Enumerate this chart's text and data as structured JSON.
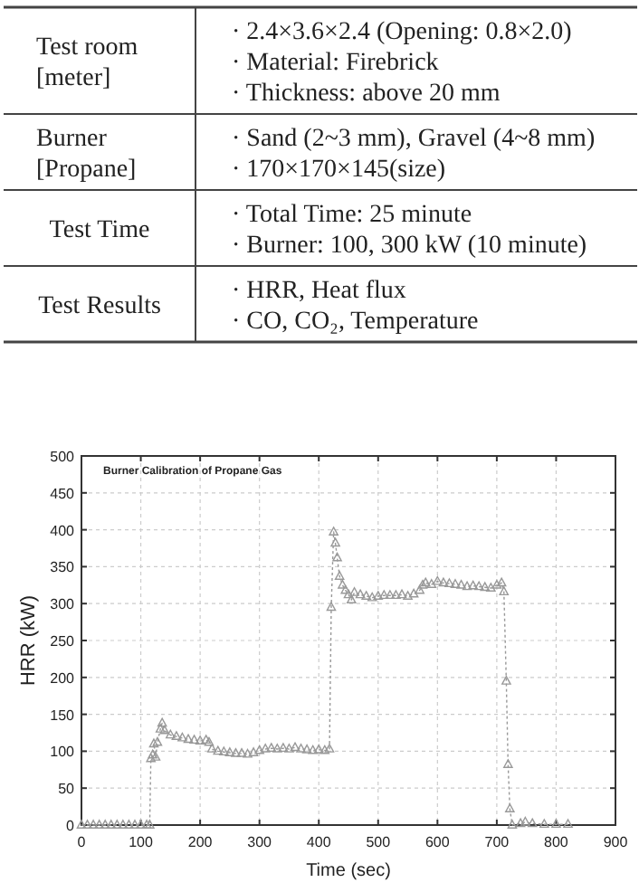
{
  "chart_data": [
    {
      "type": "other",
      "categories": [
        "Test room [meter]",
        "Burner [Propane]",
        "Test Time",
        "Test Results"
      ],
      "cell_labels": [
        [
          "· 2.4×3.6×2.4 (Opening: 0.8×2.0)",
          "· Material: Firebrick",
          "· Thickness: above 20 mm"
        ],
        [
          "· Sand (2~3 mm), Gravel (4~8 mm)",
          "· 170×170×145(size)"
        ],
        [
          "· Total Time: 25 minute",
          "· Burner: 100, 300 kW (10 minute)"
        ],
        [
          "· HRR, Heat flux",
          "· CO, CO₂, Temperature"
        ]
      ]
    },
    {
      "type": "line",
      "title": "Burner Calibration of Propane Gas",
      "xlabel": "Time (sec)",
      "ylabel": "HRR (kW)",
      "xlim": [
        0,
        900
      ],
      "xticks": [
        0,
        100,
        200,
        300,
        400,
        500,
        600,
        700,
        800,
        900
      ],
      "ylim": [
        0,
        500
      ],
      "yticks": [
        0,
        50,
        100,
        150,
        200,
        250,
        300,
        350,
        400,
        450,
        500
      ],
      "grid": true,
      "marker": "triangle",
      "line_style": "dotted",
      "series": [
        {
          "color": "#999999",
          "x": [
            0,
            10,
            20,
            30,
            40,
            50,
            60,
            70,
            80,
            90,
            100,
            110,
            115,
            117,
            120,
            122,
            125,
            128,
            133,
            136,
            140,
            150,
            160,
            170,
            180,
            190,
            200,
            210,
            215,
            220,
            230,
            240,
            250,
            260,
            270,
            280,
            290,
            300,
            310,
            320,
            330,
            340,
            350,
            360,
            370,
            380,
            390,
            400,
            410,
            418,
            421,
            425,
            428,
            431,
            435,
            440,
            445,
            450,
            455,
            460,
            470,
            480,
            490,
            500,
            510,
            520,
            530,
            540,
            550,
            560,
            570,
            575,
            580,
            590,
            600,
            610,
            620,
            630,
            640,
            650,
            660,
            670,
            680,
            690,
            700,
            708,
            712,
            716,
            719,
            722,
            726,
            740,
            748,
            760,
            780,
            800,
            820
          ],
          "values": [
            0,
            0,
            0,
            0,
            0,
            0,
            0,
            0,
            0,
            0,
            0,
            0,
            0,
            90,
            95,
            110,
            92,
            112,
            130,
            138,
            128,
            122,
            120,
            118,
            116,
            115,
            114,
            115,
            112,
            103,
            100,
            99,
            98,
            97,
            97,
            96,
            98,
            101,
            103,
            104,
            103,
            104,
            103,
            105,
            103,
            102,
            101,
            102,
            101,
            103,
            295,
            397,
            382,
            362,
            337,
            325,
            318,
            312,
            305,
            315,
            312,
            310,
            308,
            310,
            311,
            311,
            311,
            312,
            310,
            313,
            318,
            325,
            328,
            326,
            330,
            328,
            327,
            326,
            325,
            323,
            324,
            323,
            322,
            321,
            325,
            328,
            316,
            195,
            82,
            22,
            0,
            2,
            4,
            2,
            1,
            1,
            1
          ]
        }
      ]
    }
  ]
}
